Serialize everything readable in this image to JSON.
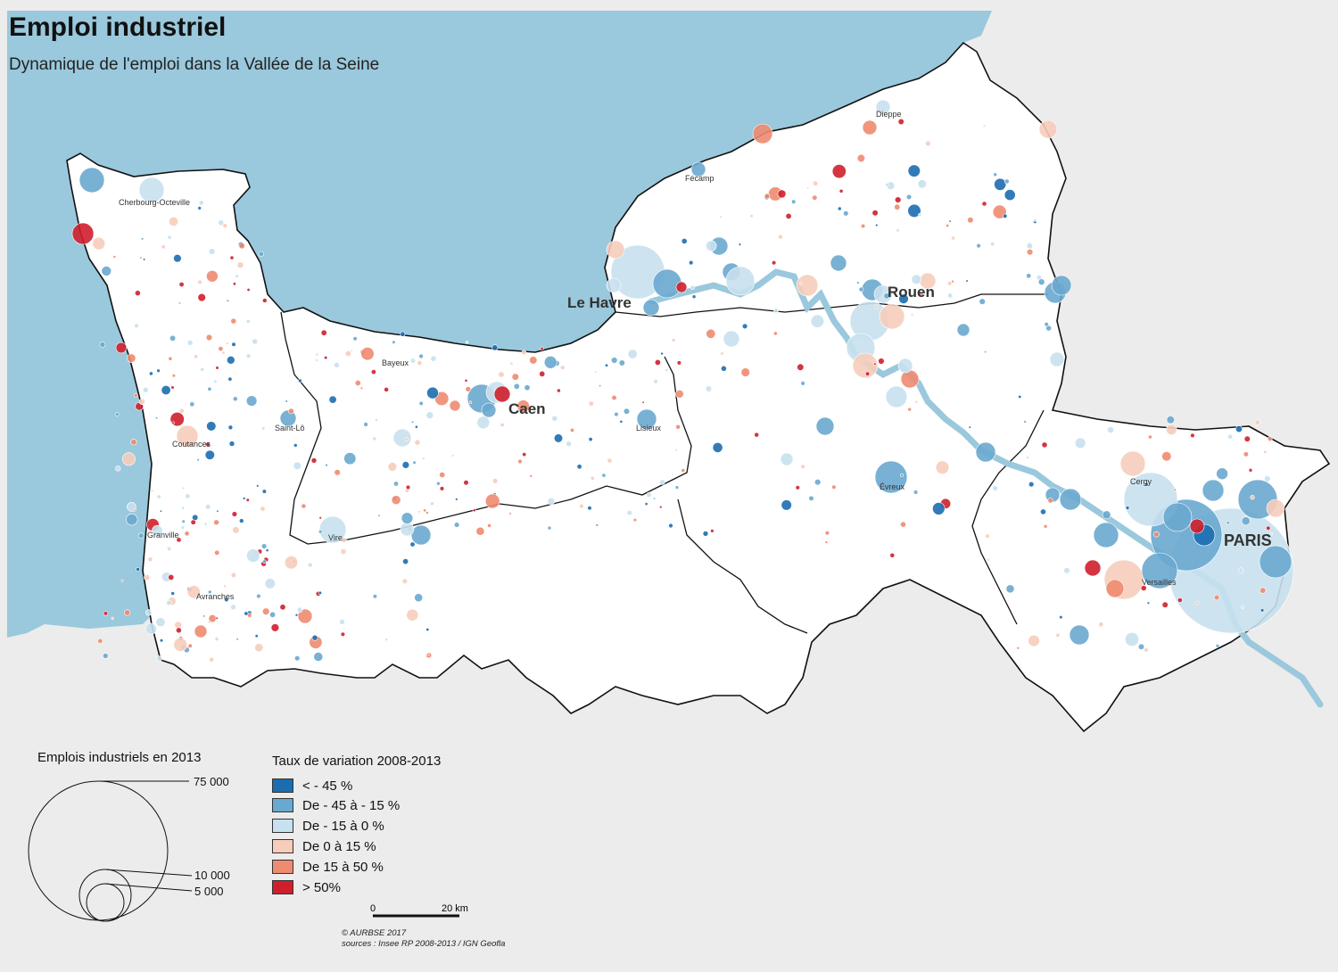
{
  "title": "Emploi industriel",
  "subtitle": "Dynamique de l'emploi dans la Vallée de la Seine",
  "colors": {
    "sea": "#9ac8dc",
    "land_context": "#ececec",
    "study_area": "#ffffff",
    "boundary": "#111111",
    "river": "#9ac8dc"
  },
  "cities": {
    "le_havre": "Le Havre",
    "rouen": "Rouen",
    "caen": "Caen",
    "paris": "PARIS",
    "cherbourg": "Cherbourg-Octeville",
    "dieppe": "Dieppe",
    "fecamp": "Fécamp",
    "bayeux": "Bayeux",
    "saint_lo": "Saint-Lô",
    "coutances": "Coutances",
    "lisieux": "Lisieux",
    "evreux": "Évreux",
    "cergy": "Cergy",
    "versailles": "Versailles",
    "granville": "Granville",
    "vire": "Vire",
    "avranches": "Avranches"
  },
  "size_legend": {
    "title": "Emplois industriels en 2013",
    "values": [
      {
        "value": 75000,
        "label": "75 000"
      },
      {
        "value": 10000,
        "label": "10 000"
      },
      {
        "value": 5000,
        "label": "5 000"
      }
    ]
  },
  "color_legend": {
    "title": "Taux de variation 2008-2013",
    "classes": [
      {
        "label": "< - 45 %",
        "color": "#1c6db0"
      },
      {
        "label": "De - 45 à - 15 %",
        "color": "#6aa9cf"
      },
      {
        "label": "De - 15 à 0 %",
        "color": "#c8e1ee"
      },
      {
        "label": "De 0 à 15 %",
        "color": "#f6cdbb"
      },
      {
        "label": "De 15 à 50 %",
        "color": "#ee8b70"
      },
      {
        "label": "> 50%",
        "color": "#cf1f2c"
      }
    ]
  },
  "scale_bar": {
    "start": "0",
    "end": "20 km"
  },
  "credits": {
    "copyright": "© AURBSE 2017",
    "sources": "sources : Insee RP 2008-2013 / IGN Geofla"
  }
}
